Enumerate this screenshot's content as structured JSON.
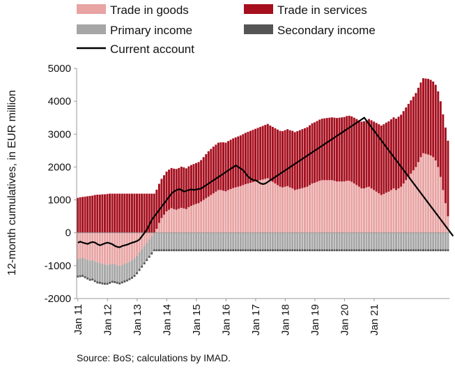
{
  "chart_data": {
    "type": "bar",
    "stacked": true,
    "ylabel": "12-month cumulatives, in EUR million",
    "ylim": [
      -2000,
      5000
    ],
    "yticks": [
      -2000,
      -1000,
      0,
      1000,
      2000,
      3000,
      4000,
      5000
    ],
    "x_labels": [
      "Jan 11",
      "Jan 12",
      "Jan 13",
      "Jan 14",
      "Jan 15",
      "Jan 16",
      "Jan 17",
      "Jan 18",
      "Jan 19",
      "Jan 20",
      "Jan 21"
    ],
    "legend_position": "top",
    "source": "Source: BoS; calculations by IMAD.",
    "colors": {
      "Trade in goods": "#e8a3a3",
      "Trade in services": "#a50f1e",
      "Primary income": "#a6a6a6",
      "Secondary income": "#555555",
      "Current account": "#000000"
    },
    "series": [
      {
        "name": "Trade in goods",
        "type": "bar",
        "values": [
          -800,
          -780,
          -760,
          -790,
          -820,
          -850,
          -830,
          -870,
          -900,
          -920,
          -950,
          -970,
          -980,
          -960,
          -940,
          -960,
          -990,
          -1010,
          -980,
          -950,
          -920,
          -880,
          -840,
          -780,
          -700,
          -600,
          -500,
          -400,
          -300,
          -200,
          -100,
          0,
          120,
          300,
          450,
          550,
          650,
          700,
          750,
          720,
          700,
          730,
          760,
          740,
          720,
          780,
          820,
          850,
          880,
          900,
          950,
          1000,
          1050,
          1100,
          1150,
          1200,
          1250,
          1300,
          1300,
          1280,
          1260,
          1300,
          1330,
          1360,
          1380,
          1400,
          1420,
          1450,
          1480,
          1500,
          1520,
          1540,
          1560,
          1580,
          1600,
          1620,
          1640,
          1660,
          1600,
          1550,
          1500,
          1450,
          1400,
          1380,
          1400,
          1420,
          1380,
          1350,
          1300,
          1320,
          1340,
          1360,
          1380,
          1400,
          1450,
          1500,
          1520,
          1550,
          1580,
          1600,
          1600,
          1600,
          1600,
          1600,
          1580,
          1560,
          1560,
          1560,
          1560,
          1580,
          1580,
          1550,
          1500,
          1450,
          1400,
          1350,
          1350,
          1380,
          1400,
          1350,
          1300,
          1250,
          1200,
          1150,
          1180,
          1220,
          1250,
          1300,
          1350,
          1300,
          1350,
          1400,
          1500,
          1600,
          1700,
          1800,
          1900,
          2000,
          2150,
          2300,
          2420,
          2400,
          2380,
          2350,
          2300,
          2200,
          2000,
          1700,
          1300,
          900,
          500
        ]
      },
      {
        "name": "Trade in services",
        "type": "bar",
        "values": [
          1060,
          1080,
          1090,
          1100,
          1110,
          1120,
          1130,
          1150,
          1160,
          1160,
          1170,
          1170,
          1180,
          1190,
          1190,
          1190,
          1190,
          1190,
          1190,
          1190,
          1190,
          1190,
          1190,
          1190,
          1190,
          1190,
          1190,
          1190,
          1190,
          1190,
          1190,
          1190,
          1190,
          1190,
          1190,
          1200,
          1210,
          1220,
          1220,
          1230,
          1240,
          1240,
          1250,
          1250,
          1240,
          1240,
          1240,
          1240,
          1240,
          1250,
          1260,
          1300,
          1340,
          1380,
          1400,
          1420,
          1430,
          1440,
          1450,
          1470,
          1480,
          1490,
          1500,
          1510,
          1520,
          1530,
          1540,
          1550,
          1560,
          1570,
          1580,
          1590,
          1600,
          1610,
          1620,
          1630,
          1640,
          1650,
          1660,
          1670,
          1680,
          1690,
          1700,
          1710,
          1720,
          1730,
          1740,
          1750,
          1760,
          1770,
          1780,
          1790,
          1800,
          1810,
          1820,
          1830,
          1840,
          1850,
          1860,
          1870,
          1880,
          1890,
          1900,
          1910,
          1920,
          1930,
          1940,
          1950,
          1960,
          1970,
          1980,
          1990,
          2000,
          2010,
          2020,
          2030,
          2040,
          2050,
          2060,
          2070,
          2080,
          2090,
          2100,
          2110,
          2120,
          2130,
          2140,
          2150,
          2160,
          2170,
          2180,
          2190,
          2200,
          2210,
          2220,
          2230,
          2240,
          2250,
          2260,
          2270,
          2280,
          2290,
          2300,
          2300,
          2300,
          2300,
          2300,
          2300,
          2300,
          2300,
          2300
        ]
      },
      {
        "name": "Primary income",
        "type": "bar",
        "values": [
          -500,
          -510,
          -520,
          -530,
          -540,
          -550,
          -560,
          -570,
          -580,
          -570,
          -560,
          -550,
          -540,
          -530,
          -520,
          -510,
          -500,
          -500,
          -500,
          -500,
          -500,
          -500,
          -500,
          -500,
          -500,
          -500,
          -500,
          -500,
          -500,
          -500,
          -500,
          -500,
          -500,
          -500,
          -500,
          -500,
          -500,
          -500,
          -500,
          -500,
          -500,
          -500,
          -500,
          -500,
          -500,
          -500,
          -500,
          -500,
          -500,
          -500,
          -500,
          -500,
          -500,
          -500,
          -500,
          -500,
          -500,
          -500,
          -500,
          -500,
          -500,
          -500,
          -500,
          -500,
          -500,
          -500,
          -500,
          -500,
          -500,
          -500,
          -500,
          -500,
          -500,
          -500,
          -500,
          -500,
          -500,
          -500,
          -500,
          -500,
          -500,
          -500,
          -500,
          -500,
          -500,
          -500,
          -500,
          -500,
          -500,
          -500,
          -500,
          -500,
          -500,
          -500,
          -500,
          -500,
          -500,
          -500,
          -500,
          -500,
          -500,
          -500,
          -500,
          -500,
          -500,
          -500,
          -500,
          -500,
          -500,
          -500,
          -500,
          -500,
          -500,
          -500,
          -500,
          -500,
          -500,
          -500,
          -500,
          -500,
          -500,
          -500,
          -500,
          -500,
          -500,
          -500,
          -500,
          -500,
          -500,
          -500,
          -500,
          -500,
          -500,
          -500,
          -500,
          -500,
          -500,
          -500,
          -500,
          -500,
          -500,
          -500,
          -500,
          -500,
          -500,
          -500,
          -500,
          -500,
          -500,
          -500,
          -500,
          -500,
          -500,
          -500
        ]
      },
      {
        "name": "Secondary income",
        "type": "bar",
        "values": [
          -60,
          -60,
          -60,
          -60,
          -60,
          -60,
          -60,
          -60,
          -60,
          -60,
          -60,
          -60,
          -60,
          -60,
          -60,
          -60,
          -60,
          -60,
          -60,
          -60,
          -60,
          -60,
          -60,
          -60,
          -60,
          -60,
          -60,
          -60,
          -60,
          -60,
          -60,
          -60,
          -60,
          -60,
          -60,
          -60,
          -60,
          -60,
          -60,
          -60,
          -60,
          -60,
          -60,
          -60,
          -60,
          -60,
          -60,
          -60,
          -60,
          -60,
          -60,
          -60,
          -60,
          -60,
          -60,
          -60,
          -60,
          -60,
          -60,
          -60,
          -60,
          -60,
          -60,
          -60,
          -60,
          -60,
          -60,
          -60,
          -60,
          -60,
          -60,
          -60,
          -60,
          -60,
          -60,
          -60,
          -60,
          -60,
          -60,
          -60,
          -60,
          -60,
          -60,
          -60,
          -60,
          -60,
          -60,
          -60,
          -60,
          -60,
          -60,
          -60,
          -60,
          -60,
          -60,
          -60,
          -60,
          -60,
          -60,
          -60,
          -60,
          -60,
          -60,
          -60,
          -60,
          -60,
          -60,
          -60,
          -60,
          -60,
          -60,
          -60,
          -60,
          -60,
          -60,
          -60,
          -60,
          -60,
          -60,
          -60,
          -60,
          -60,
          -60,
          -60,
          -60,
          -60,
          -60,
          -60,
          -60,
          -60,
          -60,
          -60,
          -60,
          -60,
          -60,
          -60,
          -60,
          -60,
          -60,
          -60,
          -60,
          -60,
          -60,
          -60,
          -60,
          -60,
          -60,
          -60,
          -60,
          -60,
          -60,
          -60,
          -60,
          -60
        ]
      },
      {
        "name": "Current account",
        "type": "line",
        "values": [
          -300,
          -270,
          -300,
          -320,
          -340,
          -300,
          -280,
          -300,
          -350,
          -380,
          -350,
          -320,
          -300,
          -320,
          -350,
          -400,
          -430,
          -440,
          -400,
          -380,
          -360,
          -330,
          -300,
          -280,
          -250,
          -200,
          -100,
          0,
          100,
          250,
          400,
          500,
          600,
          700,
          800,
          900,
          1000,
          1100,
          1200,
          1260,
          1300,
          1330,
          1300,
          1250,
          1280,
          1300,
          1320,
          1300,
          1320,
          1330,
          1350,
          1400,
          1450,
          1500,
          1550,
          1600,
          1650,
          1700,
          1750,
          1800,
          1850,
          1900,
          1950,
          2000,
          2050,
          2000,
          1950,
          1900,
          1800,
          1700,
          1650,
          1600,
          1600,
          1550,
          1500,
          1480,
          1500,
          1550,
          1600,
          1650,
          1700,
          1750,
          1800,
          1850,
          1900,
          1950,
          2000,
          2050,
          2100,
          2150,
          2200,
          2250,
          2300,
          2350,
          2400,
          2450,
          2500,
          2550,
          2600,
          2650,
          2700,
          2750,
          2800,
          2850,
          2900,
          2950,
          3000,
          3050,
          3100,
          3150,
          3200,
          3250,
          3300,
          3350,
          3400,
          3450,
          3500,
          3400,
          3300,
          3200,
          3100,
          3000,
          2900,
          2800,
          2700,
          2600,
          2500,
          2400,
          2300,
          2200,
          2100,
          2000,
          1900,
          1800,
          1700,
          1600,
          1500,
          1400,
          1300,
          1200,
          1100,
          1000,
          900,
          800,
          700,
          600,
          500,
          400,
          300,
          200,
          100,
          0,
          -100
        ]
      }
    ]
  }
}
